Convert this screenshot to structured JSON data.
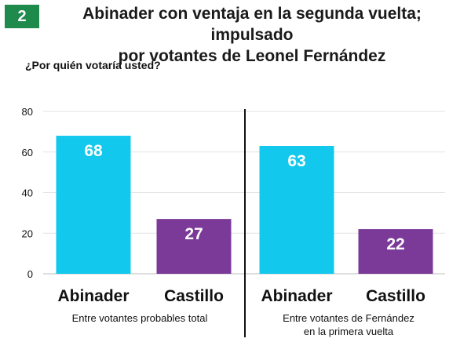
{
  "badge": "2",
  "title_lines": [
    "Abinader con ventaja en la segunda vuelta; impulsado",
    "por votantes de Leonel Fernández"
  ],
  "question": "¿Por quién votaría usted?",
  "colors": {
    "abinader": "#12c8ec",
    "castillo": "#7b3a98",
    "badge": "#1e8a4c"
  },
  "chart_data": {
    "type": "bar",
    "ylim": [
      0,
      80
    ],
    "yticks": [
      0,
      20,
      40,
      60,
      80
    ],
    "groups": [
      {
        "label_lines": [
          "Entre votantes probables total"
        ],
        "bars": [
          {
            "category": "Abinader",
            "value": 68
          },
          {
            "category": "Castillo",
            "value": 27
          }
        ]
      },
      {
        "label_lines": [
          "Entre votantes de Fernández",
          "en la primera vuelta"
        ],
        "bars": [
          {
            "category": "Abinader",
            "value": 63
          },
          {
            "category": "Castillo",
            "value": 22
          }
        ]
      }
    ]
  }
}
